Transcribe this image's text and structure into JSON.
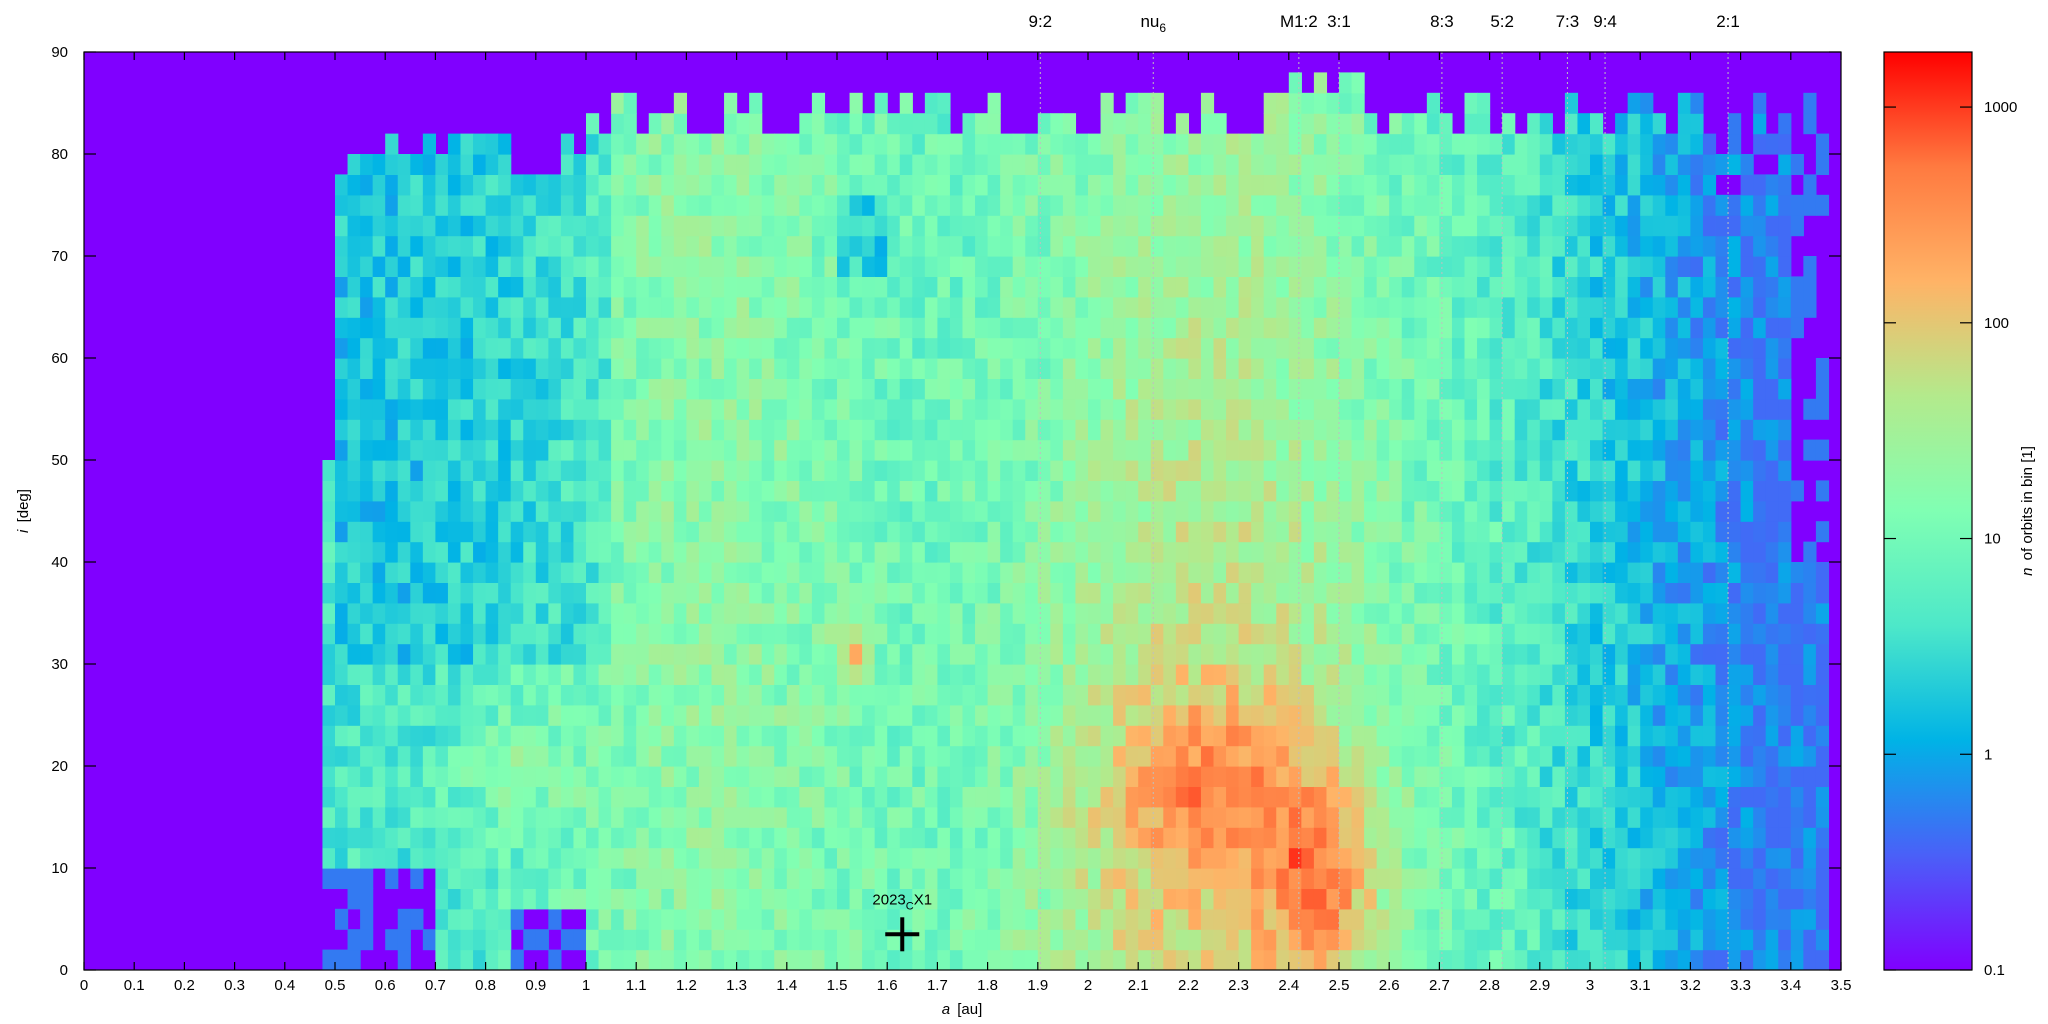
{
  "chart_data": {
    "type": "heatmap",
    "title": "",
    "xlabel": {
      "var": "a",
      "unit": "[au]"
    },
    "ylabel": {
      "var": "i",
      "unit": "[deg]"
    },
    "colorbar_label": {
      "var": "n",
      "unit": "of orbits in bin [1]"
    },
    "xlim": [
      0,
      3.5
    ],
    "ylim": [
      0,
      90
    ],
    "x_ticks": [
      "0",
      "0.1",
      "0.2",
      "0.3",
      "0.4",
      "0.5",
      "0.6",
      "0.7",
      "0.8",
      "0.9",
      "1",
      "1.1",
      "1.2",
      "1.3",
      "1.4",
      "1.5",
      "1.6",
      "1.7",
      "1.8",
      "1.9",
      "2",
      "2.1",
      "2.2",
      "2.3",
      "2.4",
      "2.5",
      "2.6",
      "2.7",
      "2.8",
      "2.9",
      "3",
      "3.1",
      "3.2",
      "3.3",
      "3.4",
      "3.5"
    ],
    "y_ticks": [
      "0",
      "10",
      "20",
      "30",
      "40",
      "50",
      "60",
      "70",
      "80",
      "90"
    ],
    "colorbar": {
      "scale": "log",
      "range": [
        0.1,
        1800
      ],
      "ticks": [
        "0.1",
        "1",
        "10",
        "100",
        "1000"
      ],
      "colormap": "rainbow",
      "stops": [
        "#8000ff",
        "#4a60f8",
        "#00b3e6",
        "#4de8c9",
        "#80ffb3",
        "#b3ea8c",
        "#ffb366",
        "#ff7a40",
        "#ff0000"
      ]
    },
    "background_color": "#8000ff",
    "cell_size": {
      "da": 0.025,
      "di": 2
    },
    "bin_ranges": {
      "a": [
        0.475,
        3.475
      ],
      "i": [
        0,
        88
      ]
    },
    "features": {
      "global_peak": {
        "a": 2.46,
        "i": 8,
        "n": 1500
      },
      "main_ridge": {
        "a": 2.25,
        "i": 18,
        "n": 600
      },
      "hot_spot": {
        "a": 1.53,
        "i": 31,
        "n": 500
      },
      "low_counts": [
        "0.5-1.0 au: 1-10",
        "3.1-3.45 au: 1-10"
      ]
    },
    "resonances": [
      {
        "label": "9:2",
        "a": 1.905
      },
      {
        "label": "nu",
        "sub": "6",
        "a": 2.13
      },
      {
        "label": "M1:2",
        "a": 2.42
      },
      {
        "label": "3:1",
        "a": 2.5
      },
      {
        "label": "8:3",
        "a": 2.705
      },
      {
        "label": "5:2",
        "a": 2.825
      },
      {
        "label": "7:3",
        "a": 2.955
      },
      {
        "label": "9:4",
        "a": 3.03
      },
      {
        "label": "2:1",
        "a": 3.275
      }
    ],
    "marker": {
      "label": "2023",
      "label_sub": "C",
      "label_suffix": "X1",
      "a": 1.63,
      "i": 3.5
    }
  }
}
